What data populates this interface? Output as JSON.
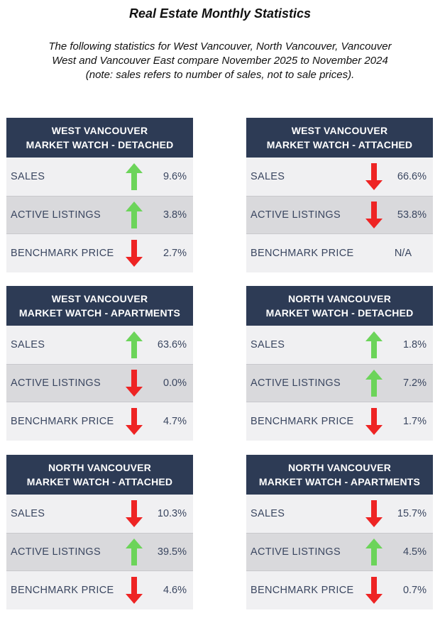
{
  "title": "Real Estate Monthly Statistics",
  "subtitle_lines": [
    "The following statistics for West Vancouver, North Vancouver, Vancouver",
    "West and Vancouver East compare November 2025 to November 2024",
    "(note: sales refers to number of sales, not to sale prices)."
  ],
  "colors": {
    "header": "#2d3b55",
    "up": "#6cd45a",
    "down": "#ee2424"
  },
  "cards": [
    {
      "line1": "WEST VANCOUVER",
      "line2": "MARKET WATCH - DETACHED",
      "rows": [
        {
          "label": "SALES",
          "arrow": "up",
          "arrow_icon": "arrow-up-icon",
          "value": "9.6%"
        },
        {
          "label": "ACTIVE LISTINGS",
          "arrow": "up",
          "arrow_icon": "arrow-up-icon",
          "value": "3.8%"
        },
        {
          "label": "BENCHMARK PRICE",
          "arrow": "down",
          "arrow_icon": "arrow-down-icon",
          "value": "2.7%"
        }
      ]
    },
    {
      "line1": "WEST VANCOUVER",
      "line2": "MARKET WATCH - ATTACHED",
      "rows": [
        {
          "label": "SALES",
          "arrow": "down",
          "arrow_icon": "arrow-down-icon",
          "value": "66.6%"
        },
        {
          "label": "ACTIVE LISTINGS",
          "arrow": "down",
          "arrow_icon": "arrow-down-icon",
          "value": "53.8%"
        },
        {
          "label": "BENCHMARK PRICE",
          "arrow": "none",
          "arrow_icon": "",
          "value": "N/A"
        }
      ]
    },
    {
      "line1": "WEST VANCOUVER",
      "line2": "MARKET WATCH - APARTMENTS",
      "rows": [
        {
          "label": "SALES",
          "arrow": "up",
          "arrow_icon": "arrow-up-icon",
          "value": "63.6%"
        },
        {
          "label": "ACTIVE LISTINGS",
          "arrow": "down",
          "arrow_icon": "arrow-down-icon",
          "value": "0.0%"
        },
        {
          "label": "BENCHMARK PRICE",
          "arrow": "down",
          "arrow_icon": "arrow-down-icon",
          "value": "4.7%"
        }
      ]
    },
    {
      "line1": "NORTH VANCOUVER",
      "line2": "MARKET WATCH - DETACHED",
      "rows": [
        {
          "label": "SALES",
          "arrow": "up",
          "arrow_icon": "arrow-up-icon",
          "value": "1.8%"
        },
        {
          "label": "ACTIVE LISTINGS",
          "arrow": "up",
          "arrow_icon": "arrow-up-icon",
          "value": "7.2%"
        },
        {
          "label": "BENCHMARK PRICE",
          "arrow": "down",
          "arrow_icon": "arrow-down-icon",
          "value": "1.7%"
        }
      ]
    },
    {
      "line1": "NORTH VANCOUVER",
      "line2": "MARKET WATCH - ATTACHED",
      "rows": [
        {
          "label": "SALES",
          "arrow": "down",
          "arrow_icon": "arrow-down-icon",
          "value": "10.3%"
        },
        {
          "label": "ACTIVE LISTINGS",
          "arrow": "up",
          "arrow_icon": "arrow-up-icon",
          "value": "39.5%"
        },
        {
          "label": "BENCHMARK PRICE",
          "arrow": "down",
          "arrow_icon": "arrow-down-icon",
          "value": "4.6%"
        }
      ]
    },
    {
      "line1": "NORTH VANCOUVER",
      "line2": "MARKET WATCH - APARTMENTS",
      "rows": [
        {
          "label": "SALES",
          "arrow": "down",
          "arrow_icon": "arrow-down-icon",
          "value": "15.7%"
        },
        {
          "label": "ACTIVE LISTINGS",
          "arrow": "up",
          "arrow_icon": "arrow-up-icon",
          "value": "4.5%"
        },
        {
          "label": "BENCHMARK PRICE",
          "arrow": "down",
          "arrow_icon": "arrow-down-icon",
          "value": "0.7%"
        }
      ]
    }
  ]
}
